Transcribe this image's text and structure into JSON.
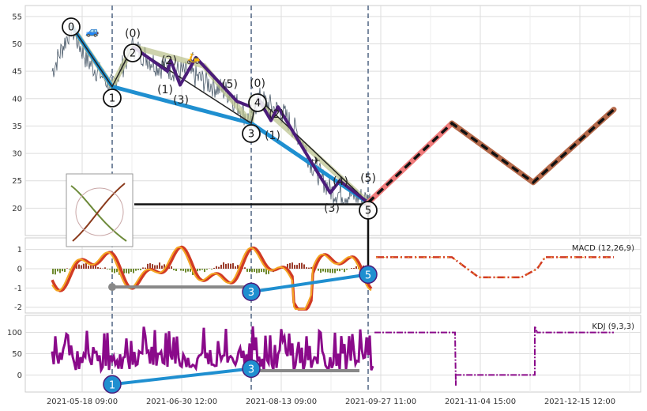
{
  "chart_data": [
    {
      "panel": "price",
      "type": "line",
      "ylim": [
        15,
        57
      ],
      "y_ticks": [
        20,
        25,
        30,
        35,
        40,
        45,
        50,
        55
      ],
      "grid": true,
      "zigzag_primary": [
        [
          0,
          53.4
        ],
        [
          1,
          42.2
        ],
        [
          3,
          35.5
        ],
        [
          5,
          21
        ]
      ],
      "zigzag_secondary": [
        [
          1,
          42.2
        ],
        [
          2,
          49.5
        ],
        [
          3,
          35.5
        ],
        [
          4,
          40.2
        ],
        [
          5,
          21
        ]
      ],
      "wave_path": [
        [
          2,
          49.5
        ],
        [
          2.5,
          45
        ],
        [
          2.6,
          47
        ],
        [
          2.8,
          42.5
        ],
        [
          3.0,
          47.5
        ],
        [
          3.6,
          39
        ],
        [
          3.8,
          40.4
        ]
      ],
      "wave_path2": [
        [
          3.8,
          40.2
        ],
        [
          4.1,
          36
        ],
        [
          4.2,
          38.5
        ],
        [
          4.6,
          28
        ],
        [
          4.75,
          23.5
        ],
        [
          4.85,
          25
        ],
        [
          5,
          21
        ]
      ],
      "forecast": [
        [
          5,
          21
        ],
        [
          6,
          35.5
        ],
        [
          7,
          24.7
        ],
        [
          8,
          38
        ]
      ],
      "wave_labels_top": [
        {
          "t": "0",
          "x": 0,
          "y": 55
        },
        {
          "t": "(0)",
          "x": 2.0,
          "y": 53
        },
        {
          "t": "(2)",
          "x": 2.5,
          "y": 49
        },
        {
          "t": "(1)",
          "x": 2.5,
          "y": 43
        },
        {
          "t": "(3)",
          "x": 2.8,
          "y": 41
        },
        {
          "t": "(5)",
          "x": 3.5,
          "y": 44.5
        },
        {
          "t": "(0)",
          "x": 4.0,
          "y": 44
        },
        {
          "t": "(2)",
          "x": 4.25,
          "y": 38.5
        },
        {
          "t": "(1)",
          "x": 4.2,
          "y": 34.5
        },
        {
          "t": "(4)",
          "x": 4.85,
          "y": 26
        },
        {
          "t": "(3)",
          "x": 4.75,
          "y": 22
        },
        {
          "t": "(5)",
          "x": 5.0,
          "y": 28
        }
      ],
      "circled": [
        {
          "t": "0",
          "x": 0.0,
          "y": 55
        },
        {
          "t": "1",
          "x": 1.0,
          "y": 42
        },
        {
          "t": "2",
          "x": 1.35,
          "y": 50.5
        },
        {
          "t": "3",
          "x": 3.0,
          "y": 35.2
        },
        {
          "t": "4",
          "x": 3.0,
          "y": 41
        },
        {
          "t": "5",
          "x": 5.0,
          "y": 21
        }
      ]
    },
    {
      "panel": "macd",
      "type": "line",
      "label": "MACD (12,26,9)",
      "ylim": [
        -2.3,
        1.6
      ],
      "y_ticks": [
        -2,
        -1,
        0,
        1
      ],
      "grid": true,
      "divergence_gray": [
        [
          1,
          -0.95
        ],
        [
          3,
          -0.95
        ]
      ],
      "divergence_blue": [
        [
          3,
          -1.2
        ],
        [
          5,
          -0.3
        ]
      ],
      "forecast_levels": [
        [
          5.1,
          0.6
        ],
        [
          6.0,
          0.6
        ],
        [
          6.3,
          0.2
        ],
        [
          6.6,
          -0.45
        ],
        [
          7.3,
          -0.45
        ],
        [
          7.5,
          0.0
        ],
        [
          7.7,
          0.6
        ],
        [
          8.0,
          0.6
        ]
      ],
      "markers": [
        {
          "t": "3",
          "x": 3,
          "y": -1.2
        },
        {
          "t": "5",
          "x": 5,
          "y": -0.3
        }
      ]
    },
    {
      "panel": "kdj",
      "type": "line",
      "label": "KDJ (9,3,3)",
      "ylim": [
        -40,
        140
      ],
      "y_ticks": [
        0,
        50,
        100
      ],
      "grid": true,
      "divergence_blue": [
        [
          1,
          -22
        ],
        [
          3,
          15
        ]
      ],
      "divergence_gray": [
        [
          3,
          10
        ],
        [
          4.9,
          10
        ]
      ],
      "forecast_levels": [
        [
          5.05,
          100
        ],
        [
          6.0,
          100
        ],
        [
          6.05,
          -25
        ],
        [
          6.05,
          0
        ],
        [
          7.0,
          0
        ],
        [
          7.0,
          115
        ],
        [
          7.05,
          100
        ],
        [
          8.0,
          100
        ]
      ],
      "markers": [
        {
          "t": "1",
          "x": 1,
          "y": -22
        },
        {
          "t": "3",
          "x": 3,
          "y": 15
        }
      ]
    }
  ],
  "x_tick_labels": [
    "2021-05-18 09:00",
    "2021-06-30 12:00",
    "2021-08-13 09:00",
    "2021-09-27 11:00",
    "2021-11-04 15:00",
    "2021-12-15 12:00"
  ],
  "emoji": {
    "car": "🚙",
    "scooter": "🛵",
    "plane": "✈"
  },
  "colors": {
    "price_line": "#4a5a6a",
    "blue_trend": "#1f8fd0",
    "purple_wave": "#4b1c7a",
    "olive_band": "#b9c08a",
    "forecast_pink": "#f07b7b",
    "forecast_brown": "#b5694a",
    "macd_orange": "#f5a623",
    "macd_red": "#d13b24",
    "kdj_purple": "#8a0a8a",
    "gray_div": "#888888",
    "dashed_vline": "#4e6482"
  }
}
